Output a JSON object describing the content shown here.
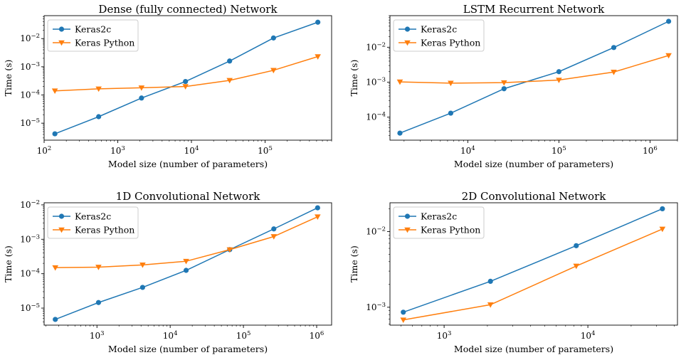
{
  "colors": {
    "keras2c": "#1f77b4",
    "keras_python": "#ff7f0e"
  },
  "chart_data": [
    {
      "type": "line",
      "title": "Dense (fully connected) Network",
      "xlabel": "Model size (number of parameters)",
      "ylabel": "Time (s)",
      "xscale": "log",
      "yscale": "log",
      "xlim": [
        100,
        800000
      ],
      "ylim": [
        2.5e-06,
        0.065
      ],
      "xticks": [
        {
          "v": 100,
          "base": "10",
          "exp": "2"
        },
        {
          "v": 1000,
          "base": "10",
          "exp": "3"
        },
        {
          "v": 10000,
          "base": "10",
          "exp": "4"
        },
        {
          "v": 100000,
          "base": "10",
          "exp": "5"
        }
      ],
      "yticks": [
        {
          "v": 1e-05,
          "base": "10",
          "exp": "−5"
        },
        {
          "v": 0.0001,
          "base": "10",
          "exp": "−4"
        },
        {
          "v": 0.001,
          "base": "10",
          "exp": "−3"
        },
        {
          "v": 0.01,
          "base": "10",
          "exp": "−2"
        }
      ],
      "x": [
        140,
        550,
        2100,
        8300,
        33000,
        130000,
        520000
      ],
      "series": [
        {
          "name": "Keras2c",
          "marker": "circle",
          "values": [
            4.2e-06,
            1.7e-05,
            7.8e-05,
            0.0003,
            0.0016,
            0.0105,
            0.038
          ]
        },
        {
          "name": "Keras Python",
          "marker": "triangle",
          "values": [
            0.00014,
            0.000165,
            0.00018,
            0.0002,
            0.00033,
            0.00075,
            0.0023
          ]
        }
      ],
      "legend": "top-left"
    },
    {
      "type": "line",
      "title": "LSTM Recurrent Network",
      "xlabel": "Model size (number of parameters)",
      "ylabel": "Time (s)",
      "xscale": "log",
      "yscale": "log",
      "xlim": [
        1400,
        2000000
      ],
      "ylim": [
        2.2e-05,
        0.08
      ],
      "xticks": [
        {
          "v": 10000,
          "base": "10",
          "exp": "4"
        },
        {
          "v": 100000,
          "base": "10",
          "exp": "5"
        },
        {
          "v": 1000000,
          "base": "10",
          "exp": "6"
        }
      ],
      "yticks": [
        {
          "v": 0.0001,
          "base": "10",
          "exp": "−4"
        },
        {
          "v": 0.001,
          "base": "10",
          "exp": "−3"
        },
        {
          "v": 0.01,
          "base": "10",
          "exp": "−2"
        }
      ],
      "x": [
        1800,
        6500,
        25000,
        100000,
        400000,
        1600000
      ],
      "series": [
        {
          "name": "Keras2c",
          "marker": "circle",
          "values": [
            3.5e-05,
            0.00013,
            0.00065,
            0.002,
            0.0098,
            0.055
          ]
        },
        {
          "name": "Keras Python",
          "marker": "triangle",
          "values": [
            0.00102,
            0.00094,
            0.00097,
            0.00115,
            0.00195,
            0.0058
          ]
        }
      ],
      "legend": "top-left"
    },
    {
      "type": "line",
      "title": "1D Convolutional Network",
      "xlabel": "Model size (number of parameters)",
      "ylabel": "Time (s)",
      "xscale": "log",
      "yscale": "log",
      "xlim": [
        190,
        1600000
      ],
      "ylim": [
        3.2e-06,
        0.0115
      ],
      "xticks": [
        {
          "v": 1000,
          "base": "10",
          "exp": "3"
        },
        {
          "v": 10000,
          "base": "10",
          "exp": "4"
        },
        {
          "v": 100000,
          "base": "10",
          "exp": "5"
        },
        {
          "v": 1000000,
          "base": "10",
          "exp": "6"
        }
      ],
      "yticks": [
        {
          "v": 1e-05,
          "base": "10",
          "exp": "−5"
        },
        {
          "v": 0.0001,
          "base": "10",
          "exp": "−4"
        },
        {
          "v": 0.001,
          "base": "10",
          "exp": "−3"
        },
        {
          "v": 0.01,
          "base": "10",
          "exp": "−2"
        }
      ],
      "x": [
        270,
        1050,
        4200,
        16500,
        65000,
        260000,
        1030000
      ],
      "series": [
        {
          "name": "Keras2c",
          "marker": "circle",
          "values": [
            4.7e-06,
            1.45e-05,
            4e-05,
            0.000125,
            0.0005,
            0.002,
            0.0082
          ]
        },
        {
          "name": "Keras Python",
          "marker": "triangle",
          "values": [
            0.00015,
            0.000155,
            0.00018,
            0.00023,
            0.0005,
            0.0012,
            0.0045
          ]
        }
      ],
      "legend": "top-left"
    },
    {
      "type": "line",
      "title": "2D Convolutional Network",
      "xlabel": "Model size (number of parameters)",
      "ylabel": "Time (s)",
      "xscale": "log",
      "yscale": "log",
      "xlim": [
        420,
        42000
      ],
      "ylim": [
        0.00058,
        0.024
      ],
      "xticks": [
        {
          "v": 1000,
          "base": "10",
          "exp": "3"
        },
        {
          "v": 10000,
          "base": "10",
          "exp": "4"
        }
      ],
      "yticks": [
        {
          "v": 0.001,
          "base": "10",
          "exp": "−3"
        },
        {
          "v": 0.01,
          "base": "10",
          "exp": "−2"
        }
      ],
      "x": [
        520,
        2100,
        8300,
        33000
      ],
      "series": [
        {
          "name": "Keras2c",
          "marker": "circle",
          "values": [
            0.00086,
            0.0022,
            0.0065,
            0.02
          ]
        },
        {
          "name": "Keras Python",
          "marker": "triangle",
          "values": [
            0.00068,
            0.00108,
            0.0035,
            0.0108
          ]
        }
      ],
      "legend": "top-left"
    }
  ]
}
